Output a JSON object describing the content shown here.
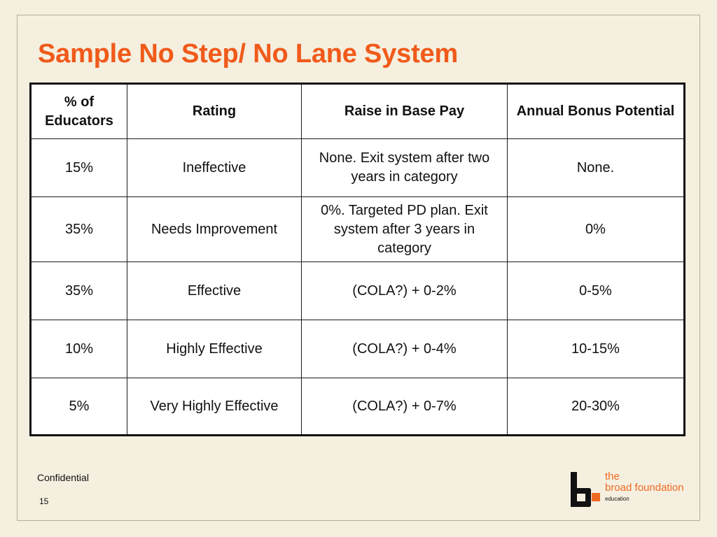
{
  "slide": {
    "title": "Sample No Step/ No Lane System",
    "footer": "Confidential",
    "page_number": "15"
  },
  "table": {
    "headers": [
      "% of Educators",
      "Rating",
      "Raise in Base Pay",
      "Annual Bonus Potential"
    ],
    "rows": [
      {
        "percent": "15%",
        "rating": "Ineffective",
        "raise": "None. Exit system after two years in category",
        "bonus": "None."
      },
      {
        "percent": "35%",
        "rating": "Needs Improvement",
        "raise": "0%. Targeted PD plan. Exit system after 3 years in category",
        "bonus": "0%"
      },
      {
        "percent": "35%",
        "rating": "Effective",
        "raise": "(COLA?) + 0-2%",
        "bonus": "0-5%"
      },
      {
        "percent": "10%",
        "rating": "Highly Effective",
        "raise": "(COLA?) + 0-4%",
        "bonus": "10-15%"
      },
      {
        "percent": "5%",
        "rating": "Very Highly Effective",
        "raise": "(COLA?) + 0-7%",
        "bonus": "20-30%"
      }
    ]
  },
  "logo": {
    "line1": "the",
    "line2": "broad foundation",
    "line3": "education"
  },
  "colors": {
    "background": "#f5efdf",
    "accent": "#f05a1a"
  }
}
